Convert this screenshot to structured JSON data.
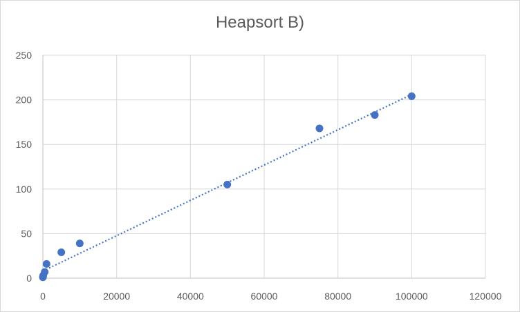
{
  "chart_data": {
    "type": "scatter",
    "title": "Heapsort B)",
    "xlabel": "",
    "ylabel": "",
    "xlim": [
      0,
      120000
    ],
    "ylim": [
      0,
      250
    ],
    "x_ticks": [
      0,
      20000,
      40000,
      60000,
      80000,
      100000,
      120000
    ],
    "y_ticks": [
      0,
      50,
      100,
      150,
      200,
      250
    ],
    "grid": true,
    "legend": "none",
    "series": [
      {
        "color": "#4472c4",
        "x": [
          10,
          50,
          100,
          500,
          1000,
          5000,
          10000,
          50000,
          75000,
          90000,
          100000
        ],
        "y": [
          1,
          2,
          3,
          7,
          16,
          29,
          39,
          105,
          168,
          183,
          204
        ]
      }
    ],
    "trendline": {
      "style": "dotted",
      "color": "#4472c4",
      "from": [
        0,
        8
      ],
      "to": [
        100000,
        206
      ]
    }
  }
}
